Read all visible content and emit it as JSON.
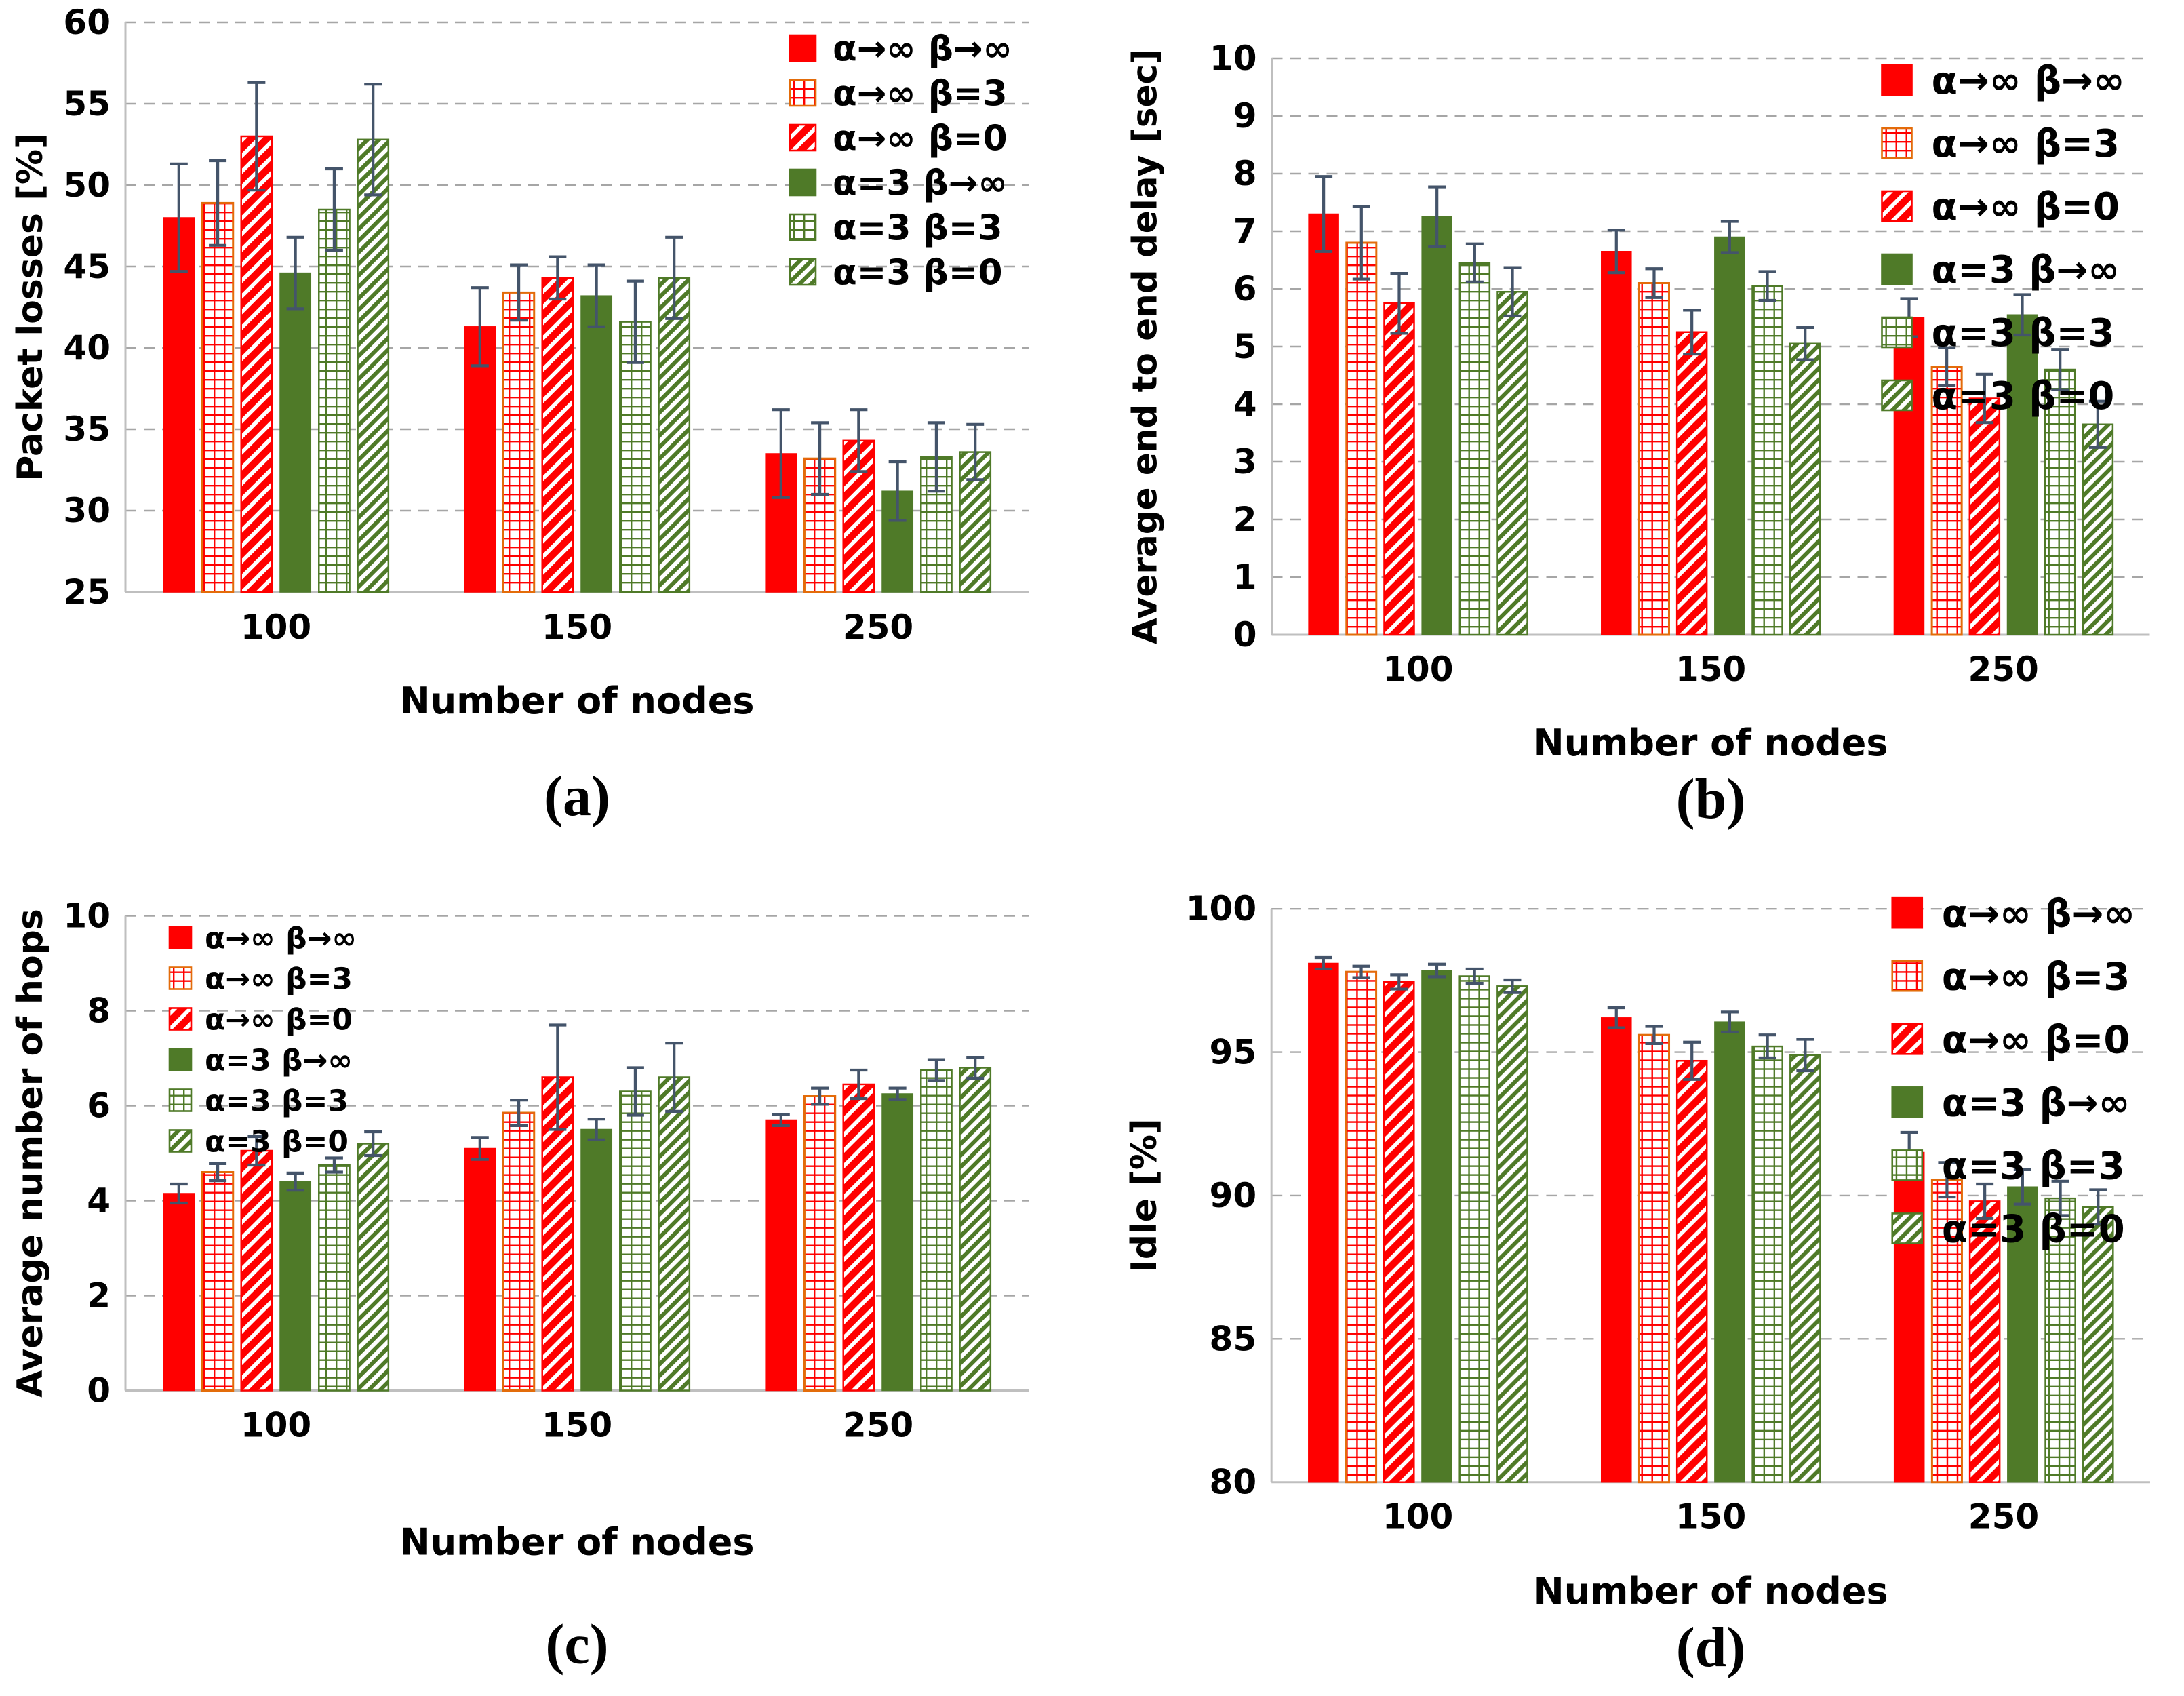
{
  "colors": {
    "red": "#FF0000",
    "green": "#4F7A28",
    "red_grid_border": "#E36C0A",
    "error_bar": "#44546A",
    "gridline": "#A6A6A6",
    "axis": "#BFBFBF",
    "text": "#000000",
    "background": "#FFFFFF"
  },
  "chart_data": [
    {
      "id": "a",
      "type": "bar",
      "caption": "(a)",
      "xlabel": "Number of nodes",
      "ylabel": "Packet losses [%]",
      "categories": [
        "100",
        "150",
        "250"
      ],
      "ylim": [
        25,
        60
      ],
      "yticks": [
        25,
        30,
        35,
        40,
        45,
        50,
        55,
        60
      ],
      "grid": true,
      "legend_position": "top-right",
      "series": [
        {
          "name": "α→∞ β→∞",
          "style": "red-solid",
          "values": [
            48.0,
            41.3,
            33.5
          ],
          "errors": [
            3.3,
            2.4,
            2.7
          ]
        },
        {
          "name": "α→∞ β=3",
          "style": "red-grid",
          "values": [
            48.9,
            43.4,
            33.2
          ],
          "errors": [
            2.6,
            1.7,
            2.2
          ]
        },
        {
          "name": "α→∞ β=0",
          "style": "red-diag",
          "values": [
            53.0,
            44.3,
            34.3
          ],
          "errors": [
            3.3,
            1.3,
            1.9
          ]
        },
        {
          "name": "α=3 β→∞",
          "style": "green-solid",
          "values": [
            44.6,
            43.2,
            31.2
          ],
          "errors": [
            2.2,
            1.9,
            1.8
          ]
        },
        {
          "name": "α=3 β=3",
          "style": "green-grid",
          "values": [
            48.5,
            41.6,
            33.3
          ],
          "errors": [
            2.5,
            2.5,
            2.1
          ]
        },
        {
          "name": "α=3 β=0",
          "style": "green-diag",
          "values": [
            52.8,
            44.3,
            33.6
          ],
          "errors": [
            3.4,
            2.5,
            1.7
          ]
        }
      ]
    },
    {
      "id": "b",
      "type": "bar",
      "caption": "(b)",
      "xlabel": "Number of nodes",
      "ylabel": "Average end to end delay [sec]",
      "categories": [
        "100",
        "150",
        "250"
      ],
      "ylim": [
        0,
        10
      ],
      "yticks": [
        0,
        1,
        2,
        3,
        4,
        5,
        6,
        7,
        8,
        9,
        10
      ],
      "grid": true,
      "legend_position": "top-right",
      "series": [
        {
          "name": "α→∞ β→∞",
          "style": "red-solid",
          "values": [
            7.3,
            6.65,
            5.5
          ],
          "errors": [
            0.65,
            0.37,
            0.33
          ]
        },
        {
          "name": "α→∞ β=3",
          "style": "red-grid",
          "values": [
            6.8,
            6.1,
            4.65
          ],
          "errors": [
            0.63,
            0.25,
            0.33
          ]
        },
        {
          "name": "α→∞ β=0",
          "style": "red-diag",
          "values": [
            5.75,
            5.25,
            4.1
          ],
          "errors": [
            0.52,
            0.38,
            0.42
          ]
        },
        {
          "name": "α=3 β→∞",
          "style": "green-solid",
          "values": [
            7.25,
            6.9,
            5.55
          ],
          "errors": [
            0.52,
            0.27,
            0.35
          ]
        },
        {
          "name": "α=3 β=3",
          "style": "green-grid",
          "values": [
            6.45,
            6.05,
            4.6
          ],
          "errors": [
            0.33,
            0.25,
            0.35
          ]
        },
        {
          "name": "α=3 β=0",
          "style": "green-diag",
          "values": [
            5.95,
            5.05,
            3.65
          ],
          "errors": [
            0.42,
            0.28,
            0.4
          ]
        }
      ]
    },
    {
      "id": "c",
      "type": "bar",
      "caption": "(c)",
      "xlabel": "Number of nodes",
      "ylabel": "Average number of hops",
      "categories": [
        "100",
        "150",
        "250"
      ],
      "ylim": [
        0,
        10
      ],
      "yticks": [
        0,
        2,
        4,
        6,
        8,
        10
      ],
      "grid": true,
      "legend_position": "top-left",
      "series": [
        {
          "name": "α→∞ β→∞",
          "style": "red-solid",
          "values": [
            4.15,
            5.1,
            5.7
          ],
          "errors": [
            0.2,
            0.23,
            0.12
          ]
        },
        {
          "name": "α→∞ β=3",
          "style": "red-grid",
          "values": [
            4.6,
            5.85,
            6.2
          ],
          "errors": [
            0.18,
            0.27,
            0.17
          ]
        },
        {
          "name": "α→∞ β=0",
          "style": "red-diag",
          "values": [
            5.05,
            6.6,
            6.45
          ],
          "errors": [
            0.3,
            1.1,
            0.3
          ]
        },
        {
          "name": "α=3 β→∞",
          "style": "green-solid",
          "values": [
            4.4,
            5.5,
            6.25
          ],
          "errors": [
            0.18,
            0.22,
            0.12
          ]
        },
        {
          "name": "α=3 β=3",
          "style": "green-grid",
          "values": [
            4.75,
            6.3,
            6.75
          ],
          "errors": [
            0.15,
            0.5,
            0.22
          ]
        },
        {
          "name": "α=3 β=0",
          "style": "green-diag",
          "values": [
            5.2,
            6.6,
            6.8
          ],
          "errors": [
            0.25,
            0.72,
            0.22
          ]
        }
      ]
    },
    {
      "id": "d",
      "type": "bar",
      "caption": "(d)",
      "xlabel": "Number of nodes",
      "ylabel": "Idle [%]",
      "categories": [
        "100",
        "150",
        "250"
      ],
      "ylim": [
        80,
        100
      ],
      "yticks": [
        80,
        85,
        90,
        95,
        100
      ],
      "grid": true,
      "legend_position": "top-right",
      "series": [
        {
          "name": "α→∞ β→∞",
          "style": "red-solid",
          "values": [
            98.1,
            96.2,
            91.5
          ],
          "errors": [
            0.2,
            0.35,
            0.7
          ]
        },
        {
          "name": "α→∞ β=3",
          "style": "red-grid",
          "values": [
            97.8,
            95.6,
            90.55
          ],
          "errors": [
            0.2,
            0.3,
            0.6
          ]
        },
        {
          "name": "α→∞ β=0",
          "style": "red-diag",
          "values": [
            97.45,
            94.7,
            89.8
          ],
          "errors": [
            0.25,
            0.65,
            0.6
          ]
        },
        {
          "name": "α=3 β→∞",
          "style": "green-solid",
          "values": [
            97.85,
            96.05,
            90.3
          ],
          "errors": [
            0.22,
            0.35,
            0.6
          ]
        },
        {
          "name": "α=3 β=3",
          "style": "green-grid",
          "values": [
            97.65,
            95.2,
            89.9
          ],
          "errors": [
            0.25,
            0.4,
            0.6
          ]
        },
        {
          "name": "α=3 β=0",
          "style": "green-diag",
          "values": [
            97.3,
            94.9,
            89.6
          ],
          "errors": [
            0.22,
            0.55,
            0.6
          ]
        }
      ]
    }
  ]
}
